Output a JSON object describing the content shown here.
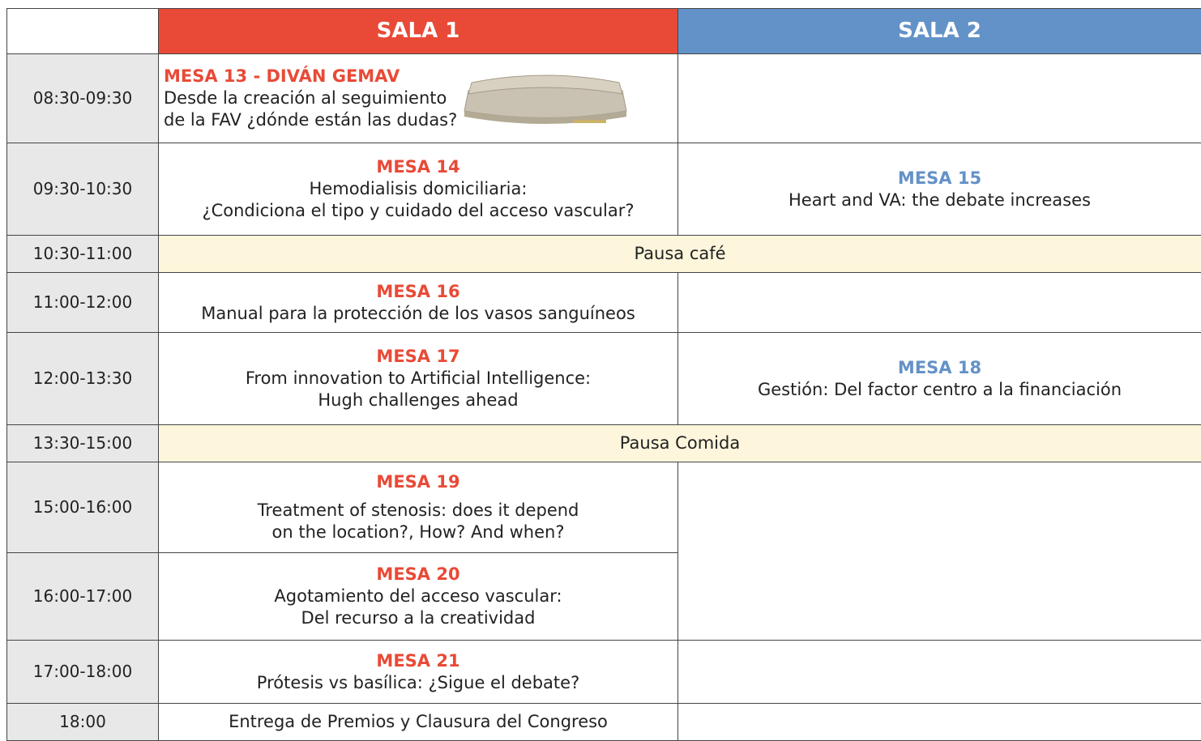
{
  "columns": [
    "SALA 1",
    "SALA 2"
  ],
  "rows": [
    {
      "time": "08:30-09:30",
      "sala1": {
        "title": "MESA 13 - DIVÁN GEMAV",
        "lines": [
          "Desde la creación al seguimiento",
          "de la FAV ¿dónde están las dudas?"
        ]
      }
    },
    {
      "time": "09:30-10:30",
      "sala1": {
        "title": "MESA 14",
        "lines": [
          "Hemodialisis domiciliaria:",
          "¿Condiciona el tipo y cuidado del acceso vascular?"
        ]
      },
      "sala2": {
        "title": "MESA 15",
        "lines": [
          "Heart and VA: the debate increases"
        ]
      }
    },
    {
      "time": "10:30-11:00",
      "pause": "Pausa café"
    },
    {
      "time": "11:00-12:00",
      "sala1": {
        "title": "MESA 16",
        "lines": [
          "Manual para la protección de los vasos sanguíneos"
        ]
      }
    },
    {
      "time": "12:00-13:30",
      "sala1": {
        "title": "MESA 17",
        "lines": [
          "From innovation to Artificial Intelligence:",
          "Hugh challenges ahead"
        ]
      },
      "sala2": {
        "title": "MESA 18",
        "lines": [
          "Gestión: Del factor centro a la financiación"
        ]
      }
    },
    {
      "time": "13:30-15:00",
      "pause": "Pausa Comida"
    },
    {
      "time": "15:00-16:00",
      "sala1": {
        "title": "MESA 19",
        "lines": [
          "Treatment of stenosis: does it depend",
          "on the location?, How? And when?"
        ]
      }
    },
    {
      "time": "16:00-17:00",
      "sala1": {
        "title": "MESA 20",
        "lines": [
          "Agotamiento del acceso vascular:",
          "Del recurso a la creatividad"
        ]
      }
    },
    {
      "time": "17:00-18:00",
      "sala1": {
        "title": "MESA 21",
        "lines": [
          "Prótesis vs basílica: ¿Sigue el debate?"
        ]
      }
    },
    {
      "time": "18:00",
      "sala1": {
        "lines": [
          "Entrega de Premios y Clausura del Congreso"
        ]
      }
    }
  ]
}
